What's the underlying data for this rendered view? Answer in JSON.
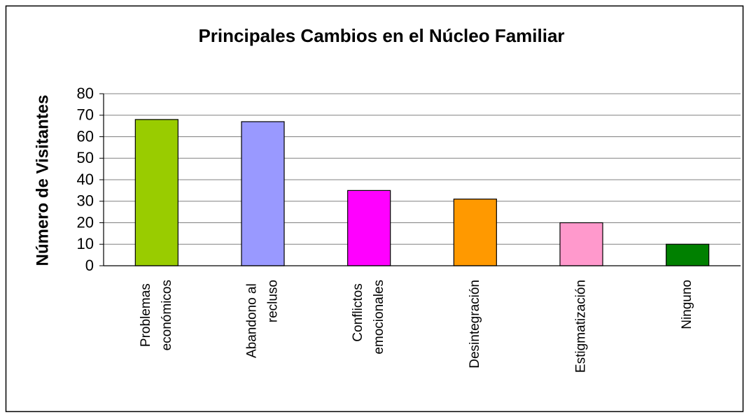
{
  "chart_data": {
    "type": "bar",
    "title": "Principales Cambios en el Núcleo Familiar",
    "y_label": "Número de Visitantes",
    "categories": [
      "Problemas económicos",
      "Abandono al recluso",
      "Conflictos emocionales",
      "Desintegración",
      "Estigmatización",
      "Ninguno"
    ],
    "values": [
      68,
      67,
      35,
      31,
      20,
      10
    ],
    "colors": [
      "#99cc00",
      "#9999ff",
      "#ff00ff",
      "#ff9900",
      "#ff99cc",
      "#008000"
    ],
    "ylim": [
      0,
      80
    ],
    "yticks": [
      0,
      10,
      20,
      30,
      40,
      50,
      60,
      70,
      80
    ],
    "grid": true
  }
}
